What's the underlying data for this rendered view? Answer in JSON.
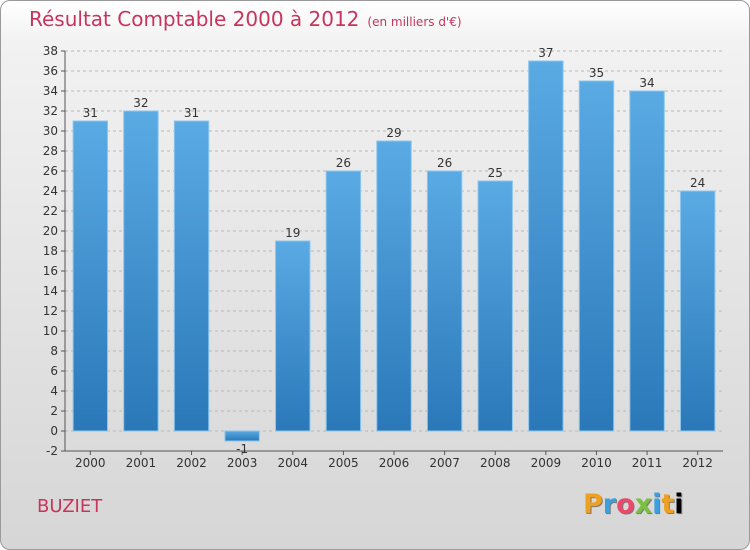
{
  "header": {
    "title": "Résultat Comptable 2000 à 2012",
    "subtitle": "(en milliers d'€)"
  },
  "commune": "BUZIET",
  "logo": [
    "P",
    "r",
    "o",
    "x",
    "i",
    "t",
    "i"
  ],
  "colors": {
    "accent": "#c8345c",
    "bar_top": "#5aaae4",
    "bar_bottom": "#2a78b8"
  },
  "chart_data": {
    "type": "bar",
    "title": "Résultat Comptable 2000 à 2012",
    "subtitle": "(en milliers d'€)",
    "xlabel": "",
    "ylabel": "",
    "categories": [
      "2000",
      "2001",
      "2002",
      "2003",
      "2004",
      "2005",
      "2006",
      "2007",
      "2008",
      "2009",
      "2010",
      "2011",
      "2012"
    ],
    "values": [
      31,
      32,
      31,
      -1,
      19,
      26,
      29,
      26,
      25,
      37,
      35,
      34,
      24
    ],
    "ylim": [
      -2,
      38
    ],
    "yticks": [
      -2,
      0,
      2,
      4,
      6,
      8,
      10,
      12,
      14,
      16,
      18,
      20,
      22,
      24,
      26,
      28,
      30,
      32,
      34,
      36,
      38
    ],
    "grid": true
  }
}
